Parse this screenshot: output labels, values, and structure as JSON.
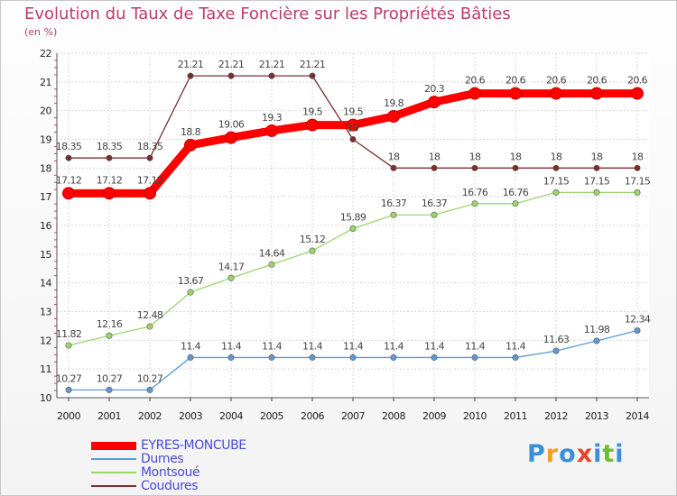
{
  "chart_data": {
    "type": "line",
    "title": "Evolution du Taux de Taxe Foncière sur les Propriétés Bâties",
    "ylabel": "(en %)",
    "xlabel": "",
    "ylim": [
      10,
      22
    ],
    "yticks": [
      "10",
      "11",
      "12",
      "13",
      "14",
      "15",
      "16",
      "17",
      "18",
      "19",
      "20",
      "21",
      "22"
    ],
    "categories": [
      "2000",
      "2001",
      "2002",
      "2003",
      "2004",
      "2005",
      "2006",
      "2007",
      "2008",
      "2009",
      "2010",
      "2011",
      "2012",
      "2013",
      "2014"
    ],
    "grid": true,
    "legend_position": "bottom-left",
    "series": [
      {
        "name": "EYRES-MONCUBE",
        "color": "#ff0000",
        "emphasis": "bold",
        "values": [
          17.12,
          17.12,
          17.12,
          18.8,
          19.06,
          19.3,
          19.5,
          19.5,
          19.8,
          20.3,
          20.6,
          20.6,
          20.6,
          20.6,
          20.6
        ],
        "labels": [
          "17.12",
          "17.12",
          "17.12",
          "18.8",
          "19.06",
          "19.3",
          "19.5",
          "19.5",
          "19.8",
          "20.3",
          "20.6",
          "20.6",
          "20.6",
          "20.6",
          "20.6"
        ]
      },
      {
        "name": "Dumes",
        "color": "#5b9bd5",
        "values": [
          10.27,
          10.27,
          10.27,
          11.4,
          11.4,
          11.4,
          11.4,
          11.4,
          11.4,
          11.4,
          11.4,
          11.4,
          11.63,
          11.98,
          12.34
        ],
        "labels": [
          "10.27",
          "10.27",
          "10.27",
          "11.4",
          "11.4",
          "11.4",
          "11.4",
          "11.4",
          "11.4",
          "11.4",
          "11.4",
          "11.4",
          "11.63",
          "11.98",
          "12.34"
        ]
      },
      {
        "name": "Montsoué",
        "color": "#9bd66b",
        "values": [
          11.82,
          12.16,
          12.48,
          13.67,
          14.17,
          14.64,
          15.12,
          15.89,
          16.37,
          16.37,
          16.76,
          16.76,
          17.15,
          17.15,
          17.15
        ],
        "labels": [
          "11.82",
          "12.16",
          "12.48",
          "13.67",
          "14.17",
          "14.64",
          "15.12",
          "15.89",
          "16.37",
          "16.37",
          "16.76",
          "16.76",
          "17.15",
          "17.15",
          "17.15"
        ]
      },
      {
        "name": "Coudures",
        "color": "#7a2e2e",
        "values": [
          18.35,
          18.35,
          18.35,
          21.21,
          21.21,
          21.21,
          21.21,
          19.0,
          18.0,
          18.0,
          18.0,
          18.0,
          18.0,
          18.0,
          18.0
        ],
        "labels": [
          "18.35",
          "18.35",
          "18.35",
          "21.21",
          "21.21",
          "21.21",
          "21.21",
          "19",
          "18",
          "18",
          "18",
          "18",
          "18",
          "18",
          "18"
        ]
      }
    ]
  },
  "logo": {
    "letters": [
      "P",
      "r",
      "o",
      "x",
      "i",
      "t",
      "i"
    ],
    "colors": [
      "#3a8fd8",
      "#f0a020",
      "#3a8fd8",
      "#e8442c",
      "#3a8fd8",
      "#6cbf2c",
      "#3a8fd8"
    ]
  }
}
